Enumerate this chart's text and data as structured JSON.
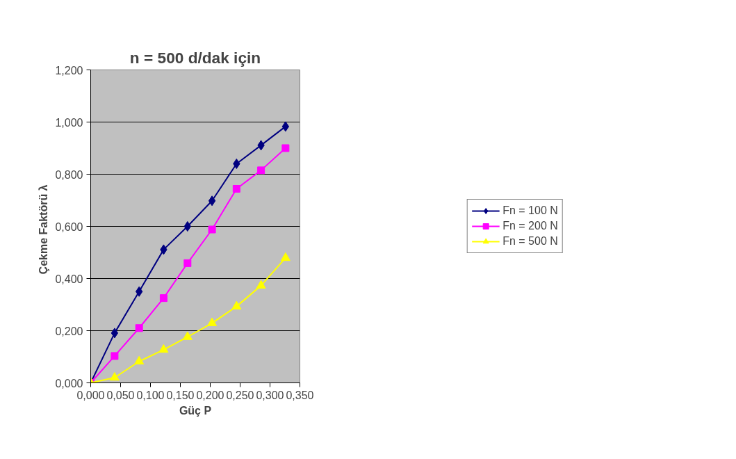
{
  "chart_data": {
    "type": "line",
    "title": "n = 500 d/dak için",
    "xlabel": "Güç P",
    "ylabel": "Çekme Faktörü   λ",
    "x": [
      0,
      0.04,
      0.081,
      0.122,
      0.162,
      0.203,
      0.244,
      0.285,
      0.326
    ],
    "series": [
      {
        "name": "Fn = 100 N",
        "color": "#000080",
        "marker": "diamond",
        "values": [
          0,
          0.191,
          0.35,
          0.511,
          0.6,
          0.698,
          0.84,
          0.911,
          0.983
        ]
      },
      {
        "name": "Fn = 200 N",
        "color": "#ff00ff",
        "marker": "square",
        "values": [
          0,
          0.103,
          0.21,
          0.325,
          0.459,
          0.588,
          0.744,
          0.815,
          0.9
        ]
      },
      {
        "name": "Fn = 500 N",
        "color": "#ffff00",
        "marker": "triangle",
        "values": [
          0,
          0.02,
          0.082,
          0.127,
          0.176,
          0.229,
          0.293,
          0.373,
          0.479
        ]
      }
    ],
    "xlim": [
      0,
      0.35
    ],
    "ylim": [
      0,
      1.2
    ],
    "xticks": [
      {
        "value": 0,
        "label": "0,000"
      },
      {
        "value": 0.05,
        "label": "0,050"
      },
      {
        "value": 0.1,
        "label": "0,100"
      },
      {
        "value": 0.15,
        "label": "0,150"
      },
      {
        "value": 0.2,
        "label": "0,200"
      },
      {
        "value": 0.25,
        "label": "0,250"
      },
      {
        "value": 0.3,
        "label": "0,300"
      },
      {
        "value": 0.35,
        "label": "0,350"
      }
    ],
    "yticks": [
      {
        "value": 0,
        "label": "0,000"
      },
      {
        "value": 0.2,
        "label": "0,200"
      },
      {
        "value": 0.4,
        "label": "0,400"
      },
      {
        "value": 0.6,
        "label": "0,600"
      },
      {
        "value": 0.8,
        "label": "0,800"
      },
      {
        "value": 1.0,
        "label": "1,000"
      },
      {
        "value": 1.2,
        "label": "1,200"
      }
    ],
    "grid": "y",
    "legend": "right",
    "line_style": "solid"
  }
}
